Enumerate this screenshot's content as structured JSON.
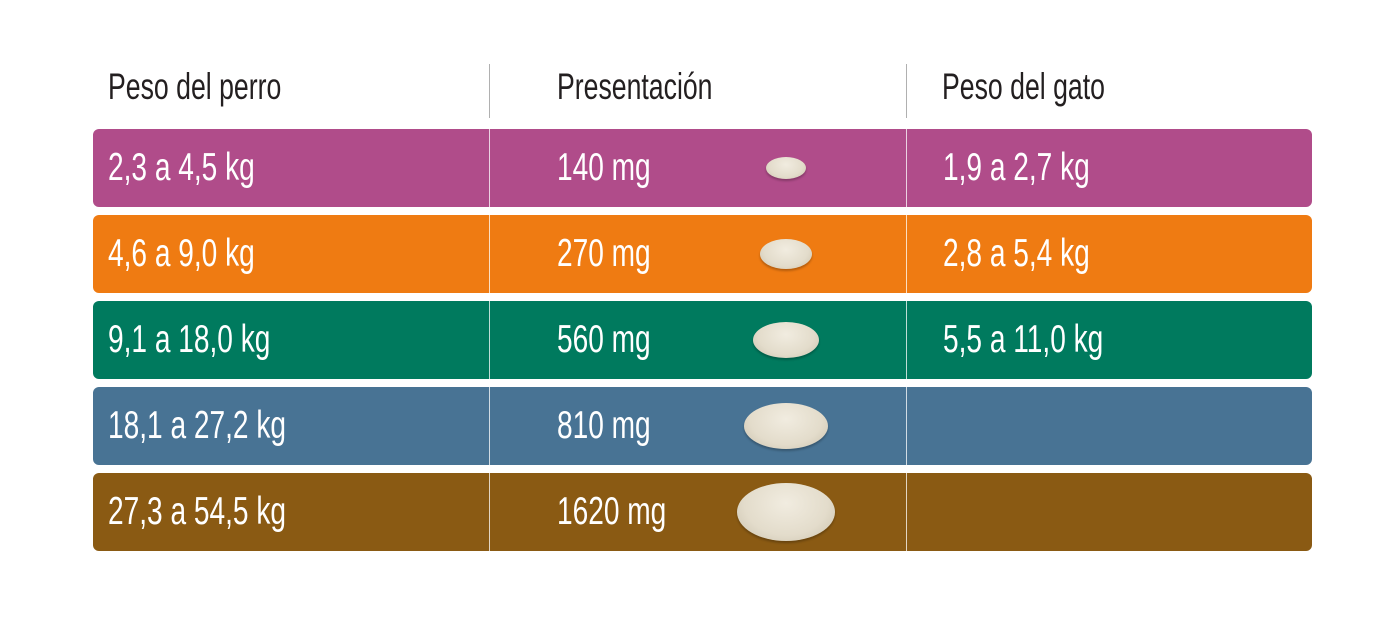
{
  "headers": {
    "dog_weight": "Peso del perro",
    "presentation": "Presentación",
    "cat_weight": "Peso del gato"
  },
  "rows": [
    {
      "dog": "2,3 a 4,5 kg",
      "dose": "140 mg",
      "cat": "1,9 a 2,7 kg",
      "color": "#b04c8a",
      "pill_icon": "tablet-icon"
    },
    {
      "dog": "4,6 a 9,0 kg",
      "dose": "270 mg",
      "cat": "2,8 a 5,4 kg",
      "color": "#ef7b12",
      "pill_icon": "tablet-icon"
    },
    {
      "dog": "9,1 a 18,0 kg",
      "dose": "560 mg",
      "cat": "5,5 a 11,0 kg",
      "color": "#007a5e",
      "pill_icon": "tablet-icon"
    },
    {
      "dog": "18,1 a 27,2 kg",
      "dose": "810 mg",
      "cat": "",
      "color": "#487394",
      "pill_icon": "tablet-icon"
    },
    {
      "dog": "27,3 a 54,5 kg",
      "dose": "1620 mg",
      "cat": "",
      "color": "#8a5a13",
      "pill_icon": "tablet-icon"
    }
  ]
}
